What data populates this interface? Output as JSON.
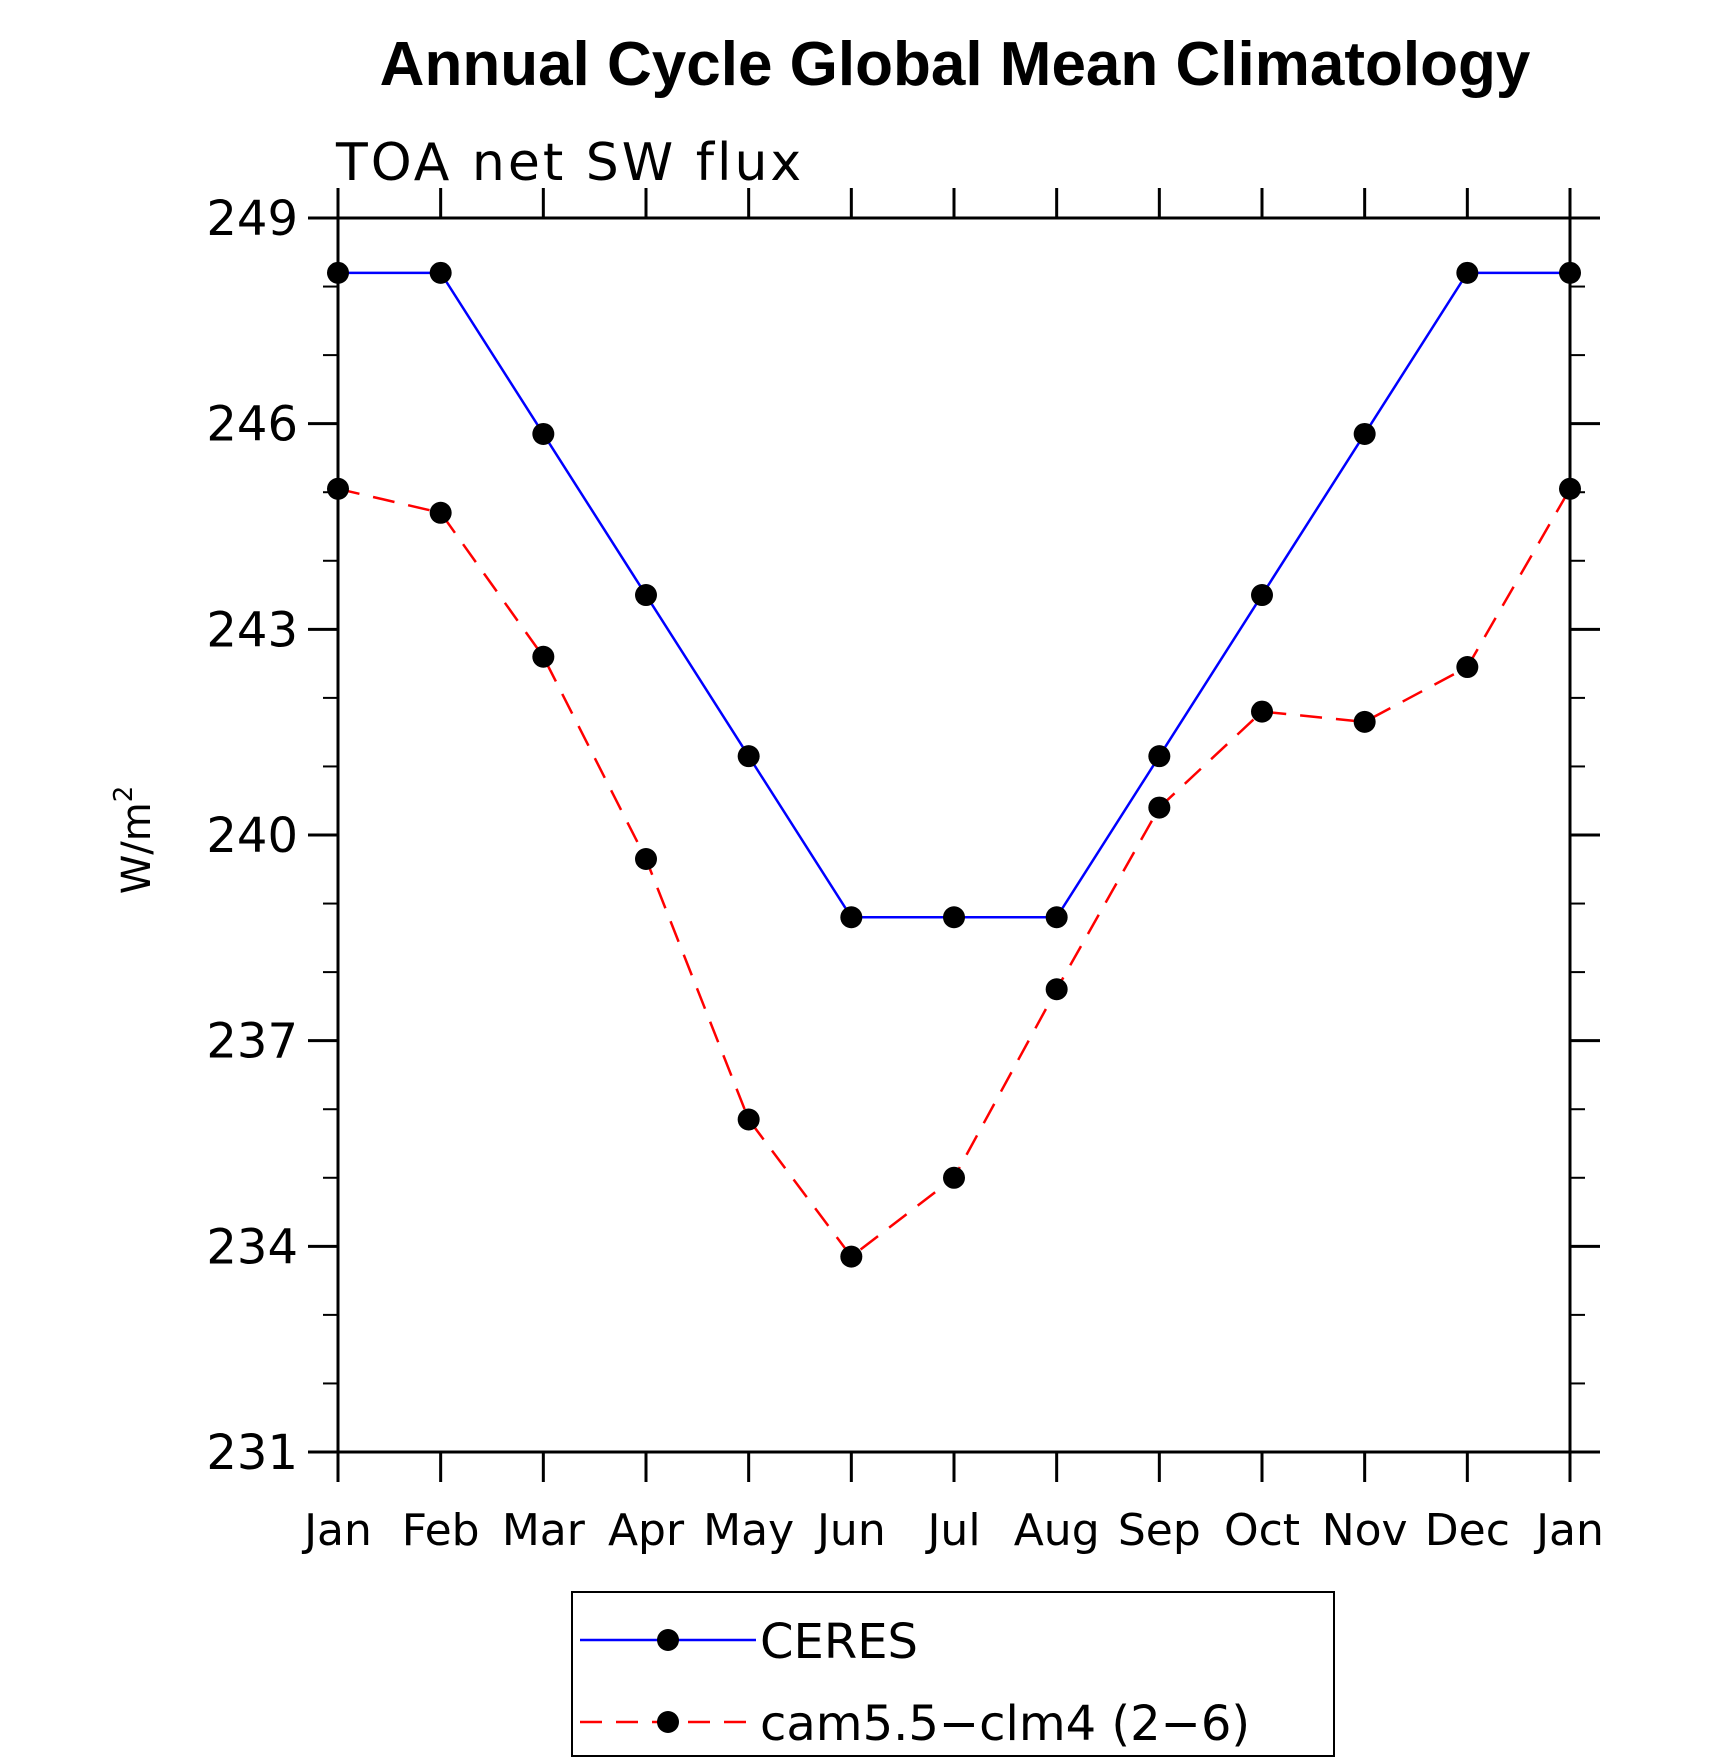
{
  "chart_data": {
    "type": "line",
    "title": "Annual Cycle Global Mean Climatology",
    "subtitle": "TOA net SW flux",
    "ylabel": "W/m",
    "ylabel_superscript": "2",
    "xlabel": "",
    "ylim": [
      231,
      249
    ],
    "yticks": [
      "231",
      "234",
      "237",
      "240",
      "243",
      "246",
      "249"
    ],
    "categories": [
      "Jan",
      "Feb",
      "Mar",
      "Apr",
      "May",
      "Jun",
      "Jul",
      "Aug",
      "Sep",
      "Oct",
      "Nov",
      "Dec",
      "Jan"
    ],
    "grid": false,
    "legend_position": "bottom",
    "series": [
      {
        "name": "CERES",
        "color": "#0000ff",
        "dash": "solid",
        "marker": "filled-circle",
        "values": [
          248.2,
          248.2,
          245.85,
          243.5,
          241.15,
          238.8,
          238.8,
          238.8,
          241.15,
          243.5,
          245.85,
          248.2,
          248.2
        ]
      },
      {
        "name": "cam5.5−clm4 (2−6)",
        "color": "#ff0000",
        "dash": "dashed",
        "marker": "filled-circle",
        "values": [
          245.05,
          244.7,
          242.6,
          239.65,
          235.85,
          233.85,
          235.0,
          237.75,
          240.4,
          241.8,
          241.65,
          242.45,
          245.05
        ]
      }
    ]
  }
}
